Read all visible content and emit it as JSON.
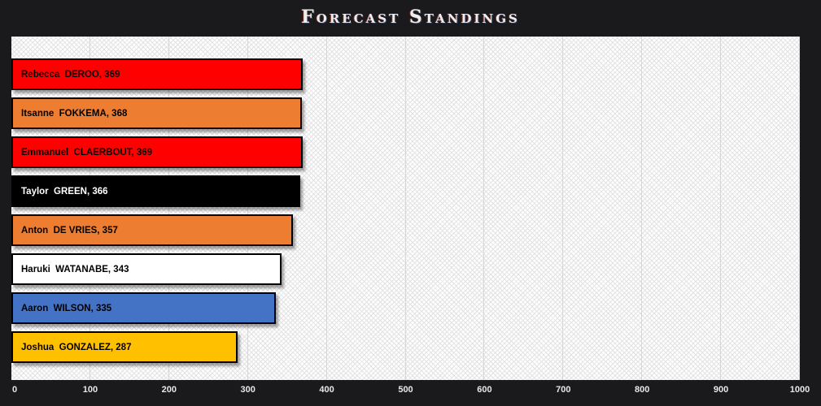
{
  "title": "Forecast Standings",
  "chart_data": {
    "type": "bar",
    "orientation": "horizontal",
    "title": "Forecast Standings",
    "xlabel": "",
    "ylabel": "",
    "xlim": [
      0,
      1000
    ],
    "x_ticks": [
      0,
      100,
      200,
      300,
      400,
      500,
      600,
      700,
      800,
      900,
      1000
    ],
    "grid": true,
    "legend": false,
    "bars": [
      {
        "label": "Rebecca  DEROO, 369",
        "name": "Rebecca DEROO",
        "value": 369,
        "color": "#fe0000",
        "text_color": "#000000"
      },
      {
        "label": "Itsanne  FOKKEMA, 368",
        "name": "Itsanne FOKKEMA",
        "value": 368,
        "color": "#ed7d31",
        "text_color": "#000000"
      },
      {
        "label": "Emmanuel  CLAERBOUT, 369",
        "name": "Emmanuel CLAERBOUT",
        "value": 369,
        "color": "#fe0000",
        "text_color": "#000000"
      },
      {
        "label": "Taylor  GREEN, 366",
        "name": "Taylor GREEN",
        "value": 366,
        "color": "#000000",
        "text_color": "#ffffff"
      },
      {
        "label": "Anton  DE VRIES, 357",
        "name": "Anton DE VRIES",
        "value": 357,
        "color": "#ed7d31",
        "text_color": "#000000"
      },
      {
        "label": "Haruki  WATANABE, 343",
        "name": "Haruki WATANABE",
        "value": 343,
        "color": "#ffffff",
        "text_color": "#000000"
      },
      {
        "label": "Aaron  WILSON, 335",
        "name": "Aaron WILSON",
        "value": 335,
        "color": "#4472c4",
        "text_color": "#000000"
      },
      {
        "label": "Joshua  GONZALEZ, 287",
        "name": "Joshua GONZALEZ",
        "value": 287,
        "color": "#ffc000",
        "text_color": "#000000"
      }
    ]
  },
  "colors": {
    "background": "#1a1a1c",
    "plot_background": "#ffffff",
    "gridline": "#d6d6d6",
    "bar_border": "#000000",
    "axis_text": "#e8e8e8",
    "title_text": "#ededed"
  }
}
